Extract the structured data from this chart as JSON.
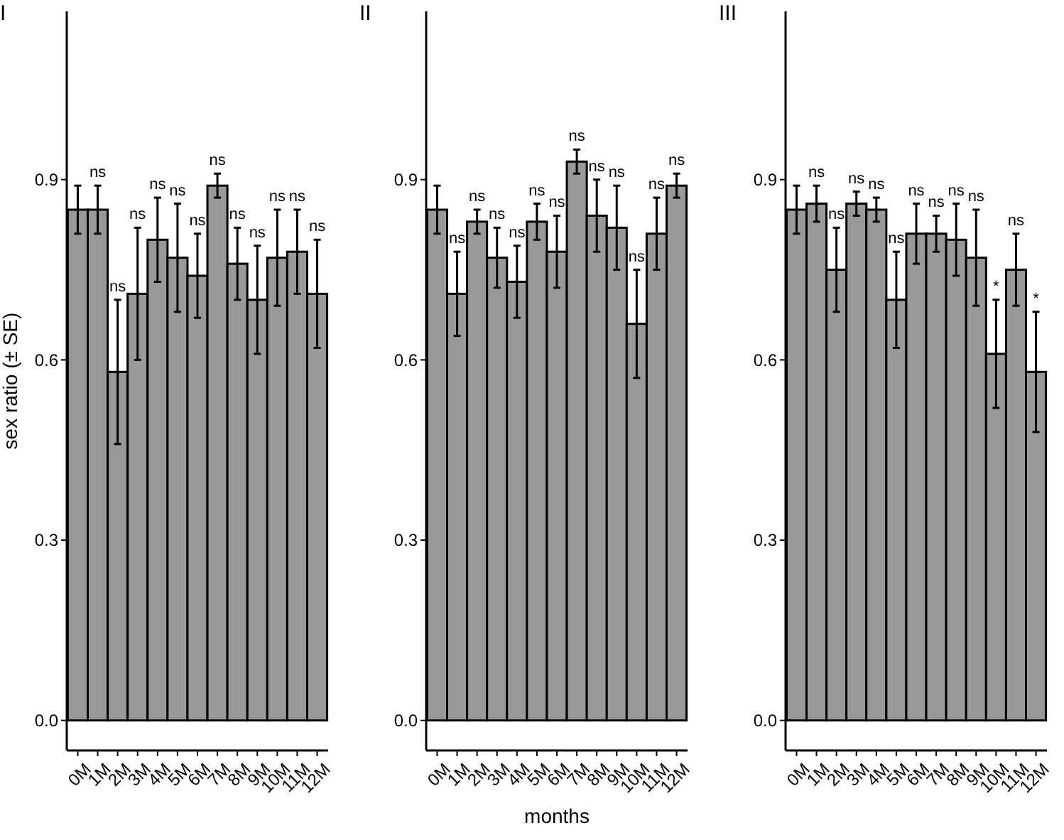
{
  "chart_data": [
    {
      "type": "bar",
      "title": "I",
      "ylabel": "sex ratio (± SE)",
      "categories": [
        "0M",
        "1M",
        "2M",
        "3M",
        "4M",
        "5M",
        "6M",
        "7M",
        "8M",
        "9M",
        "10M",
        "11M",
        "12M"
      ],
      "color": "#999999",
      "values": [
        0.85,
        0.85,
        0.58,
        0.71,
        0.8,
        0.77,
        0.74,
        0.89,
        0.76,
        0.7,
        0.77,
        0.78,
        0.71
      ],
      "errors": [
        0.04,
        0.04,
        0.12,
        0.11,
        0.07,
        0.09,
        0.07,
        0.02,
        0.06,
        0.09,
        0.08,
        0.07,
        0.09
      ],
      "ylim": [
        -0.05,
        1.18
      ],
      "yticks": [
        {
          "value": 0,
          "label": "0.0"
        },
        {
          "value": 0.3,
          "label": "0.3"
        },
        {
          "value": 0.6,
          "label": "0.6"
        },
        {
          "value": 0.9,
          "label": "0.9"
        }
      ],
      "annotations": [
        "ns",
        "ns",
        "ns",
        "ns",
        "ns",
        "ns",
        "ns",
        "ns",
        "ns",
        "ns",
        "ns",
        "ns"
      ]
    },
    {
      "type": "bar",
      "title": "II",
      "xlabel": "months",
      "categories": [
        "0M",
        "1M",
        "2M",
        "3M",
        "4M",
        "5M",
        "6M",
        "7M",
        "8M",
        "9M",
        "10M",
        "11M",
        "12M"
      ],
      "color": "#999999",
      "values": [
        0.85,
        0.71,
        0.83,
        0.77,
        0.73,
        0.83,
        0.78,
        0.93,
        0.84,
        0.82,
        0.66,
        0.81,
        0.89
      ],
      "errors": [
        0.04,
        0.07,
        0.02,
        0.05,
        0.06,
        0.03,
        0.06,
        0.02,
        0.06,
        0.07,
        0.09,
        0.06,
        0.02
      ],
      "ylim": [
        -0.05,
        1.18
      ],
      "yticks": [
        {
          "value": 0,
          "label": "0.0"
        },
        {
          "value": 0.3,
          "label": "0.3"
        },
        {
          "value": 0.6,
          "label": "0.6"
        },
        {
          "value": 0.9,
          "label": "0.9"
        }
      ],
      "annotations": [
        "ns",
        "ns",
        "ns",
        "ns",
        "ns",
        "ns",
        "ns",
        "ns",
        "ns",
        "ns",
        "ns",
        "ns"
      ]
    },
    {
      "type": "bar",
      "title": "III",
      "categories": [
        "0M",
        "1M",
        "2M",
        "3M",
        "4M",
        "5M",
        "6M",
        "7M",
        "8M",
        "9M",
        "10M",
        "11M",
        "12M"
      ],
      "color": "#999999",
      "values": [
        0.85,
        0.86,
        0.75,
        0.86,
        0.85,
        0.7,
        0.81,
        0.81,
        0.8,
        0.77,
        0.61,
        0.75,
        0.58
      ],
      "errors": [
        0.04,
        0.03,
        0.07,
        0.02,
        0.02,
        0.08,
        0.05,
        0.03,
        0.06,
        0.08,
        0.09,
        0.06,
        0.1
      ],
      "ylim": [
        -0.05,
        1.18
      ],
      "yticks": [
        {
          "value": 0,
          "label": "0.0"
        },
        {
          "value": 0.3,
          "label": "0.3"
        },
        {
          "value": 0.6,
          "label": "0.6"
        },
        {
          "value": 0.9,
          "label": "0.9"
        }
      ],
      "annotations": [
        "ns",
        "ns",
        "ns",
        "ns",
        "ns",
        "ns",
        "ns",
        "ns",
        "ns",
        "*",
        "ns",
        "*"
      ]
    }
  ]
}
